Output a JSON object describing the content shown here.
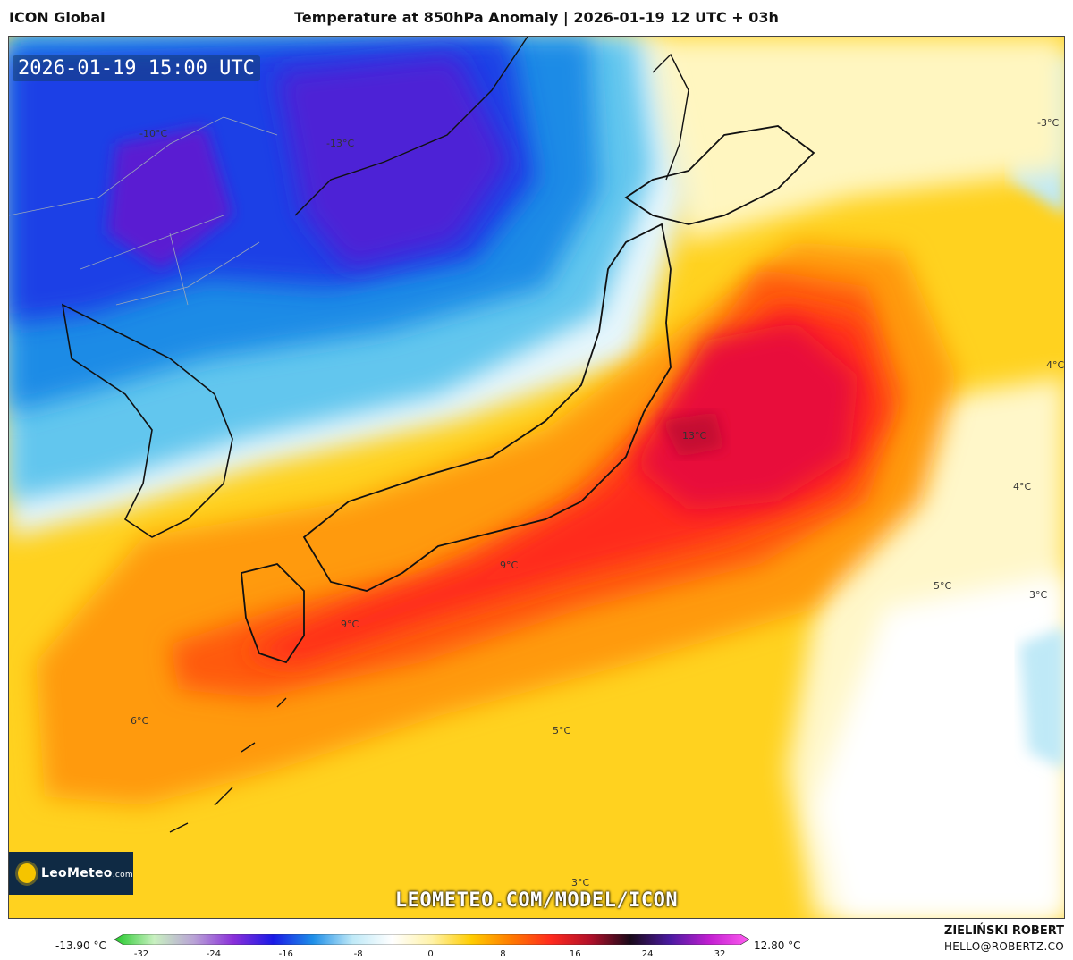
{
  "header": {
    "model": "ICON Global",
    "title": "Temperature at 850hPa Anomaly | 2026-01-19 12 UTC + 03h"
  },
  "map": {
    "timestamp": "2026-01-19 15:00 UTC",
    "watermark_url": "LEOMETEO.COM/MODEL/ICON",
    "logo_text": "LeoMeteo",
    "logo_suffix": ".com",
    "contour_labels": [
      {
        "text": "-10°C"
      },
      {
        "text": "-13°C"
      },
      {
        "text": "-3°C"
      },
      {
        "text": "4°C"
      },
      {
        "text": "13°C"
      },
      {
        "text": "4°C"
      },
      {
        "text": "5°C"
      },
      {
        "text": "3°C"
      },
      {
        "text": "9°C"
      },
      {
        "text": "9°C"
      },
      {
        "text": "6°C"
      },
      {
        "text": "5°C"
      },
      {
        "text": "3°C"
      }
    ]
  },
  "legend": {
    "min_label": "-13.90 °C",
    "max_label": "12.80 °C",
    "ticks": [
      "-32",
      "-24",
      "-16",
      "-8",
      "0",
      "8",
      "16",
      "24",
      "32"
    ],
    "colors": [
      "#22c92a",
      "#c8f0c0",
      "#b9a3d6",
      "#8a2fd9",
      "#1a1ae6",
      "#1e8fe8",
      "#bfe9f7",
      "#ffffff",
      "#fff2a8",
      "#ffcc00",
      "#ff7a00",
      "#ff2a1e",
      "#b0102a",
      "#1a0a1a",
      "#4a1aa0",
      "#c21fd1",
      "#ff5cf0"
    ]
  },
  "footer": {
    "author": "ZIELIŃSKI ROBERT",
    "email": "HELLO@ROBERTZ.CO"
  }
}
